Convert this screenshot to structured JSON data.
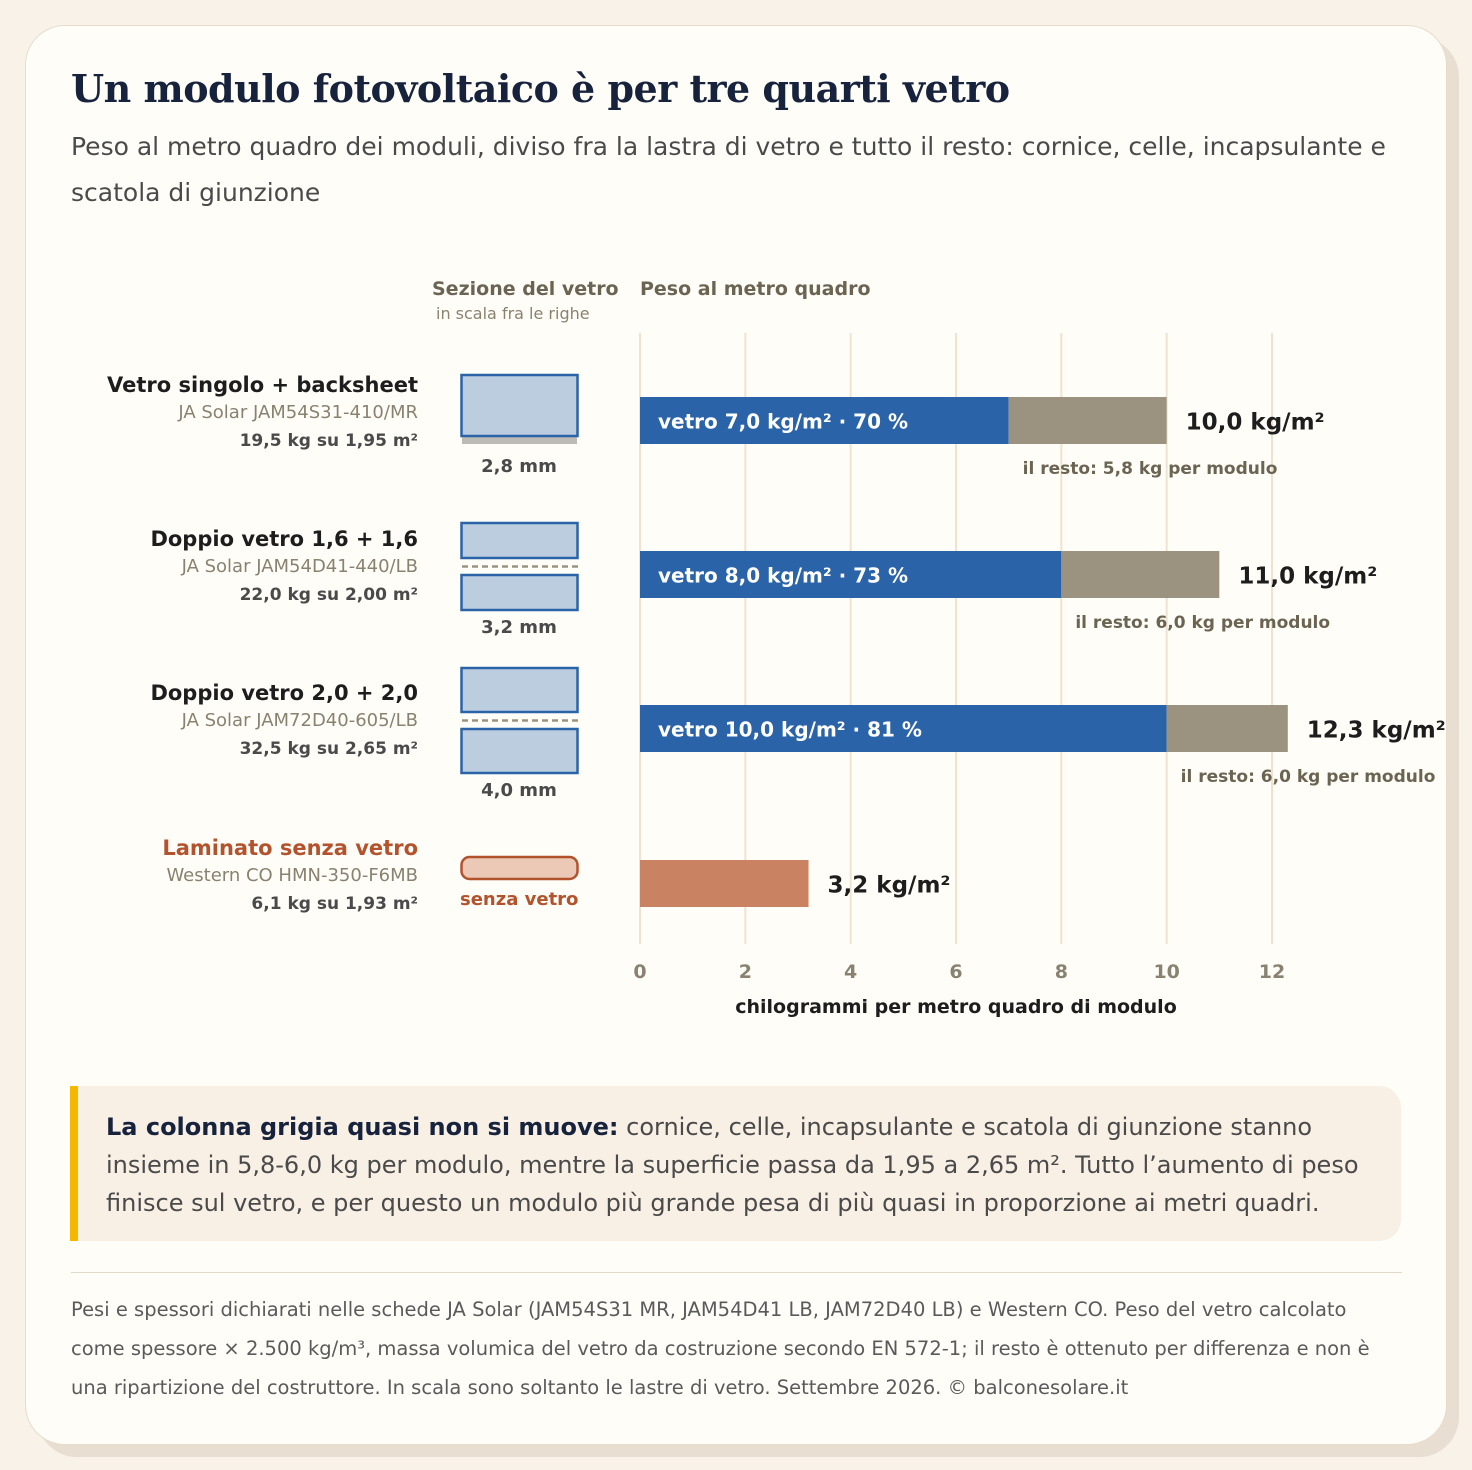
{
  "title": "Un modulo fotovoltaico è per tre quarti vetro",
  "subtitle": "Peso al metro quadro dei moduli, diviso fra la lastra di vetro e tutto il resto: cornice, celle, incapsulante e scatola di giunzione",
  "columns": {
    "section_title": "Sezione del vetro",
    "section_sub": "in scala fra le righe",
    "weight_title": "Peso al metro quadro"
  },
  "rows": [
    {
      "name": "Vetro singolo + backsheet",
      "model": "JA Solar JAM54S31-410/MR",
      "weight": "19,5 kg su 1,95 m²",
      "glass_caption": "2,8 mm"
    },
    {
      "name": "Doppio vetro 1,6 + 1,6",
      "model": "JA Solar JAM54D41-440/LB",
      "weight": "22,0 kg su 2,00 m²",
      "glass_caption": "3,2 mm"
    },
    {
      "name": "Doppio vetro 2,0 + 2,0",
      "model": "JA Solar JAM72D40-605/LB",
      "weight": "32,5 kg su 2,65 m²",
      "glass_caption": "4,0 mm"
    },
    {
      "name": "Laminato senza vetro",
      "model": "Western CO HMN-350-F6MB",
      "weight": "6,1 kg su 1,93 m²",
      "glass_caption": "senza vetro"
    }
  ],
  "chart_data": {
    "type": "bar",
    "orientation": "horizontal",
    "stacked": true,
    "categories": [
      "Vetro singolo + backsheet",
      "Doppio vetro 1,6 + 1,6",
      "Doppio vetro 2,0 + 2,0",
      "Laminato senza vetro"
    ],
    "glass_values": [
      7.0,
      8.0,
      10.0,
      0
    ],
    "rest_values": [
      3.0,
      3.0,
      2.3,
      3.2
    ],
    "totals": [
      10.0,
      11.0,
      12.3,
      3.2
    ],
    "glass_labels": [
      "vetro 7,0 kg/m² · 70 %",
      "vetro 8,0 kg/m² · 73 %",
      "vetro 10,0 kg/m² · 81 %",
      ""
    ],
    "total_labels": [
      "10,0 kg/m²",
      "11,0 kg/m²",
      "12,3 kg/m²",
      "3,2 kg/m²"
    ],
    "rest_labels": [
      "il resto: 5,8 kg per modulo",
      "il resto: 6,0 kg per modulo",
      "il resto: 6,0 kg per modulo",
      ""
    ],
    "xlabel": "chilogrammi per metro quadro di modulo",
    "xlim": [
      0,
      12
    ],
    "xticks": [
      "0",
      "2",
      "4",
      "6",
      "8",
      "10",
      "12"
    ],
    "grid": true,
    "colors": {
      "glass": "#2b63a8",
      "rest": "#9b9380",
      "no_glass": "#c98262",
      "grid": "#efe3cf"
    }
  },
  "note": {
    "lead": "La colonna grigia quasi non si muove:",
    "text": " cornice, celle, incapsulante e scatola di giunzione stanno insieme in 5,8-6,0 kg per modulo, mentre la superficie passa da 1,95 a 2,65 m². Tutto l’aumento di peso finisce sul vetro, e per questo un modulo più grande pesa di più quasi in proporzione ai metri quadri."
  },
  "footer": "Pesi e spessori dichiarati nelle schede JA Solar (JAM54S31 MR, JAM54D41 LB, JAM72D40 LB) e Western CO. Peso del vetro calcolato come spessore × 2.500 kg/m³, massa volumica del vetro da costruzione secondo EN 572-1; il resto è ottenuto per differenza e non è una ripartizione del costruttore. In scala sono soltanto le lastre di vetro. Settembre 2026. © balconesolare.it"
}
